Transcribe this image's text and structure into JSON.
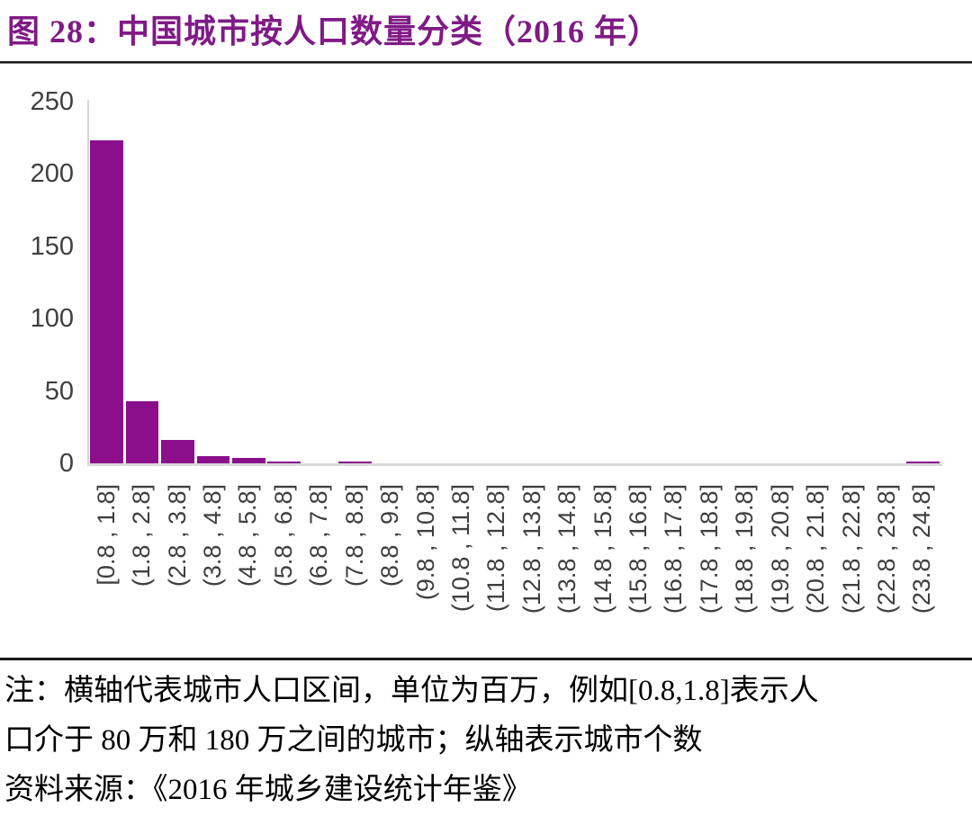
{
  "title": {
    "text": "图 28：中国城市按人口数量分类（2016 年）"
  },
  "chart_data": {
    "type": "bar",
    "title": "中国城市按人口数量分类（2016 年）",
    "categories": [
      "[0.8 , 1.8]",
      "(1.8 , 2.8]",
      "(2.8 , 3.8]",
      "(3.8 , 4.8]",
      "(4.8 , 5.8]",
      "(5.8 , 6.8]",
      "(6.8 , 7.8]",
      "(7.8 , 8.8]",
      "(8.8 , 9.8]",
      "(9.8 , 10.8]",
      "(10.8 , 11.8]",
      "(11.8 , 12.8]",
      "(12.8 , 13.8]",
      "(13.8 , 14.8]",
      "(14.8 , 15.8]",
      "(15.8 , 16.8]",
      "(16.8 , 17.8]",
      "(17.8 , 18.8]",
      "(18.8 , 19.8]",
      "(19.8 , 20.8]",
      "(20.8 , 21.8]",
      "(21.8 , 22.8]",
      "(22.8 , 23.8]",
      "(23.8 , 24.8]"
    ],
    "values": [
      223,
      43,
      16,
      5,
      4,
      1,
      0,
      1,
      0,
      0,
      0,
      0,
      0,
      0,
      0,
      0,
      0,
      0,
      0,
      0,
      0,
      0,
      0,
      1
    ],
    "xlabel": "",
    "ylabel": "",
    "ylim": [
      0,
      250
    ],
    "y_ticks": [
      0,
      50,
      100,
      150,
      200,
      250
    ],
    "grid": false,
    "legend": false,
    "x_tick_rotation": 90
  },
  "notes": {
    "line1": "注：横轴代表城市人口区间，单位为百万，例如[0.8,1.8]表示人",
    "line2": "口介于 80 万和 180 万之间的城市；纵轴表示城市个数",
    "source": "资料来源：《2016 年城乡建设统计年鉴》"
  },
  "colors": {
    "title": "#801A86",
    "bar": "#8B0E8B",
    "axis_line": "#D9D9D9",
    "tick_text": "#3F3F3F",
    "rule": "#1A1A1A"
  }
}
